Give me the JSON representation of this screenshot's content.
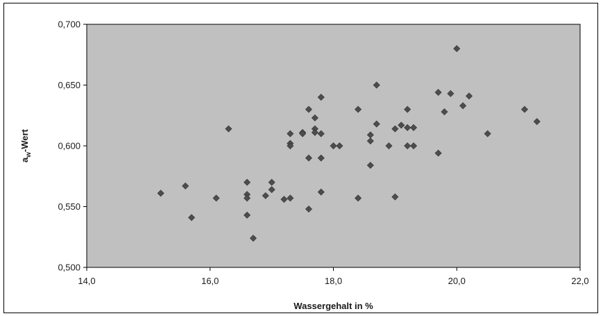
{
  "chart_data": {
    "type": "scatter",
    "xlabel": "Wassergehalt in %",
    "ylabel": {
      "main": "a",
      "sub": "w",
      "rest": "-Wert"
    },
    "xlim": [
      14.0,
      22.0
    ],
    "ylim": [
      0.5,
      0.7
    ],
    "x_ticks": [
      "14,0",
      "16,0",
      "18,0",
      "20,0",
      "22,0"
    ],
    "y_ticks": [
      "0,500",
      "0,550",
      "0,600",
      "0,650",
      "0,700"
    ],
    "grid": false,
    "plot_background": "#c0c0c0",
    "marker_color": "#4d4d4d",
    "points": [
      [
        15.2,
        0.561
      ],
      [
        15.6,
        0.567
      ],
      [
        15.7,
        0.541
      ],
      [
        16.1,
        0.557
      ],
      [
        16.3,
        0.614
      ],
      [
        16.6,
        0.57
      ],
      [
        16.6,
        0.56
      ],
      [
        16.6,
        0.557
      ],
      [
        16.6,
        0.543
      ],
      [
        16.7,
        0.524
      ],
      [
        16.9,
        0.559
      ],
      [
        17.0,
        0.57
      ],
      [
        17.0,
        0.564
      ],
      [
        17.2,
        0.556
      ],
      [
        17.3,
        0.557
      ],
      [
        17.3,
        0.61
      ],
      [
        17.3,
        0.602
      ],
      [
        17.3,
        0.6
      ],
      [
        17.5,
        0.611
      ],
      [
        17.5,
        0.61
      ],
      [
        17.6,
        0.63
      ],
      [
        17.6,
        0.59
      ],
      [
        17.6,
        0.548
      ],
      [
        17.7,
        0.623
      ],
      [
        17.7,
        0.614
      ],
      [
        17.7,
        0.611
      ],
      [
        17.8,
        0.64
      ],
      [
        17.8,
        0.61
      ],
      [
        17.8,
        0.59
      ],
      [
        17.8,
        0.562
      ],
      [
        18.0,
        0.6
      ],
      [
        18.1,
        0.6
      ],
      [
        18.4,
        0.63
      ],
      [
        18.4,
        0.557
      ],
      [
        18.6,
        0.609
      ],
      [
        18.6,
        0.604
      ],
      [
        18.6,
        0.584
      ],
      [
        18.7,
        0.65
      ],
      [
        18.7,
        0.618
      ],
      [
        18.9,
        0.6
      ],
      [
        19.0,
        0.614
      ],
      [
        19.0,
        0.558
      ],
      [
        19.1,
        0.617
      ],
      [
        19.2,
        0.63
      ],
      [
        19.2,
        0.615
      ],
      [
        19.2,
        0.6
      ],
      [
        19.3,
        0.615
      ],
      [
        19.3,
        0.6
      ],
      [
        19.7,
        0.644
      ],
      [
        19.7,
        0.594
      ],
      [
        19.8,
        0.628
      ],
      [
        19.9,
        0.643
      ],
      [
        20.0,
        0.68
      ],
      [
        20.1,
        0.633
      ],
      [
        20.2,
        0.641
      ],
      [
        20.5,
        0.61
      ],
      [
        21.1,
        0.63
      ],
      [
        21.3,
        0.62
      ]
    ]
  }
}
